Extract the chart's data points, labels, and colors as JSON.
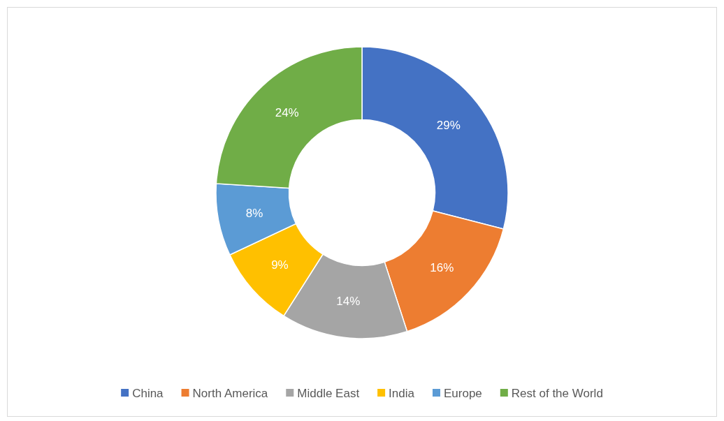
{
  "chart_data": {
    "type": "donut",
    "categories": [
      "China",
      "North America",
      "Middle East",
      "India",
      "Europe",
      "Rest of the World"
    ],
    "values": [
      29,
      16,
      14,
      9,
      8,
      24
    ],
    "colors": [
      "#4472c4",
      "#ed7d31",
      "#a5a5a5",
      "#ffc000",
      "#5b9bd5",
      "#70ad47"
    ],
    "value_labels": [
      "29%",
      "16%",
      "14%",
      "9%",
      "8%",
      "24%"
    ],
    "legend": "bottom"
  }
}
